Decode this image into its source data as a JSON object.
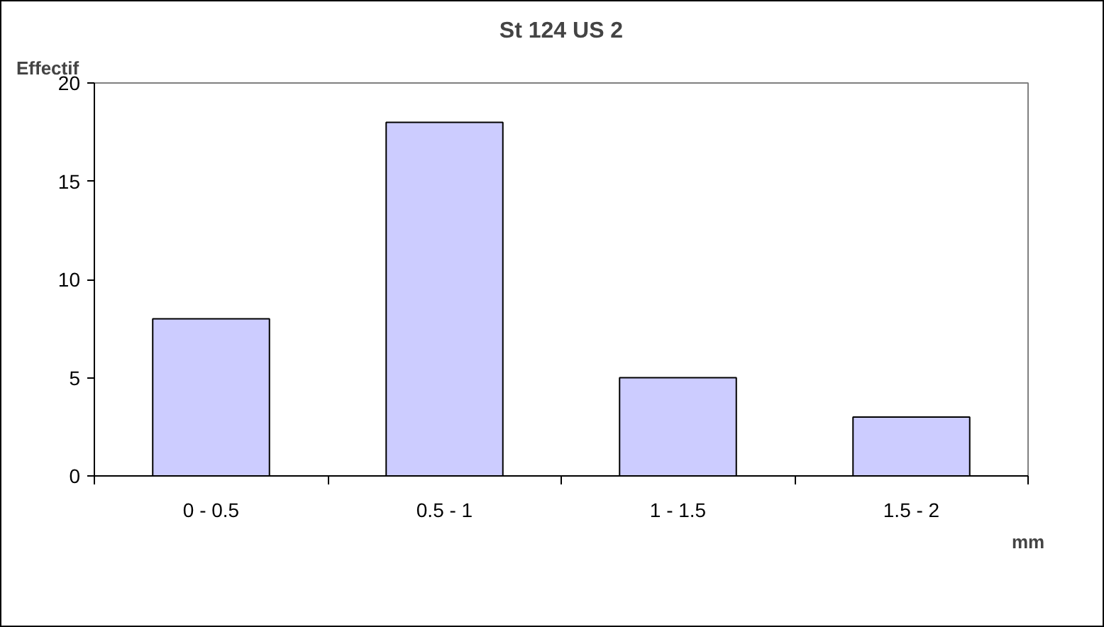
{
  "chart_data": {
    "type": "bar",
    "title": "St 124 US 2",
    "xlabel": "mm",
    "ylabel": "Effectif",
    "categories": [
      "0 - 0.5",
      "0.5 - 1",
      "1 - 1.5",
      "1.5 - 2"
    ],
    "values": [
      8,
      18,
      5,
      3
    ],
    "color": "#ccccff",
    "ylim": [
      0,
      20
    ],
    "yticks": [
      0,
      5,
      10,
      15,
      20
    ],
    "grid": false
  }
}
